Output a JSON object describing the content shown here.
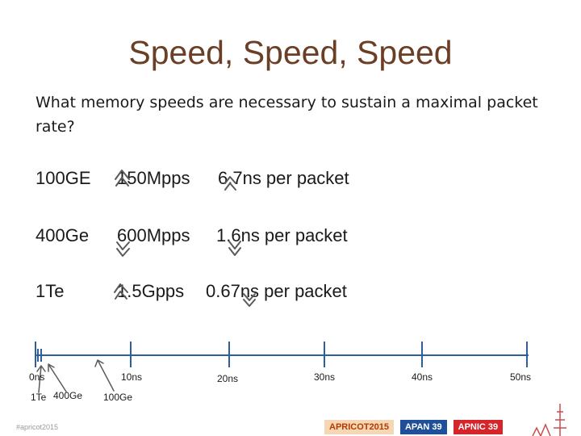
{
  "slide": {
    "title": "Speed, Speed, Speed",
    "question": "What memory speeds are necessary to sustain a maximal packet rate?"
  },
  "rows": [
    {
      "iface": "100GE",
      "pps": "150Mpps",
      "time": "6.7ns per packet"
    },
    {
      "iface": "400Ge",
      "pps": "600Mpps",
      "time": "1.6ns per packet"
    },
    {
      "iface": "1Te",
      "pps": "1.5Gpps",
      "time": "0.67ns per packet"
    }
  ],
  "timeline": {
    "ticks": [
      "0ns",
      "10ns",
      "20ns",
      "30ns",
      "40ns",
      "50ns"
    ],
    "markers": [
      "1Te",
      "400Ge",
      "100Ge"
    ]
  },
  "footer": {
    "hashtag": "#apricot2015",
    "logos": [
      "APRICOT2015",
      "APAN 39",
      "APNIC 39"
    ]
  },
  "colors": {
    "title": "#6b3f26",
    "timeline": "#2f5f9a",
    "sketch": "#5a5a5a"
  }
}
